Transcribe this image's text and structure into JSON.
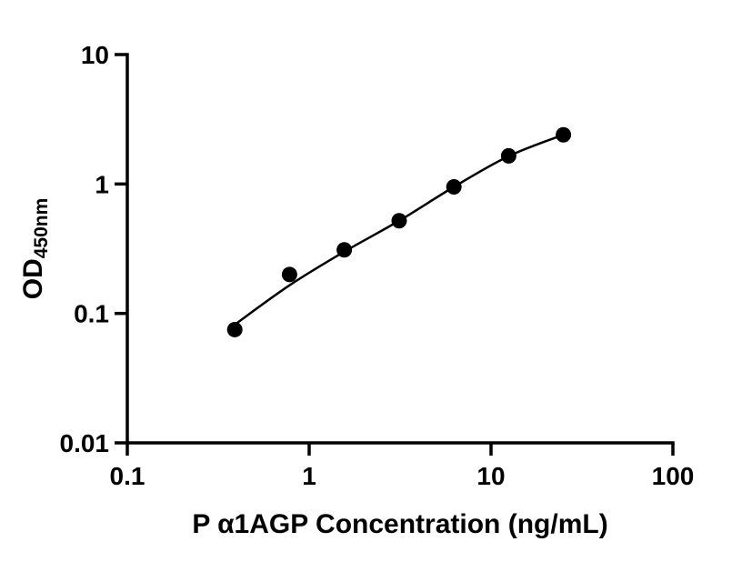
{
  "chart_data": {
    "type": "scatter",
    "title": "",
    "xlabel": "P α1AGP Concentration (ng/mL)",
    "ylabel": "OD",
    "ylabel_subscript": "450nm",
    "x_scale": "log",
    "y_scale": "log",
    "xlim": [
      0.1,
      100
    ],
    "ylim": [
      0.01,
      10
    ],
    "x_ticks": [
      0.1,
      1,
      10,
      100
    ],
    "x_tick_labels": [
      "0.1",
      "1",
      "10",
      "100"
    ],
    "y_ticks": [
      0.01,
      0.1,
      1,
      10
    ],
    "y_tick_labels": [
      "0.01",
      "0.1",
      "1",
      "10"
    ],
    "grid": false,
    "legend": false,
    "series": [
      {
        "name": "standards",
        "marker": "circle",
        "color": "#000000",
        "x": [
          0.39,
          0.78,
          1.56,
          3.125,
          6.25,
          12.5,
          25
        ],
        "y": [
          0.075,
          0.2,
          0.31,
          0.52,
          0.95,
          1.65,
          2.4
        ]
      }
    ],
    "fit_curve": {
      "name": "four-parameter-fit",
      "color": "#000000",
      "x": [
        0.39,
        0.78,
        1.56,
        3.125,
        6.25,
        12.5,
        25
      ],
      "y": [
        0.082,
        0.165,
        0.3,
        0.52,
        0.95,
        1.64,
        2.4
      ]
    }
  },
  "colors": {
    "axis": "#000000",
    "marker": "#000000",
    "background": "#ffffff"
  }
}
